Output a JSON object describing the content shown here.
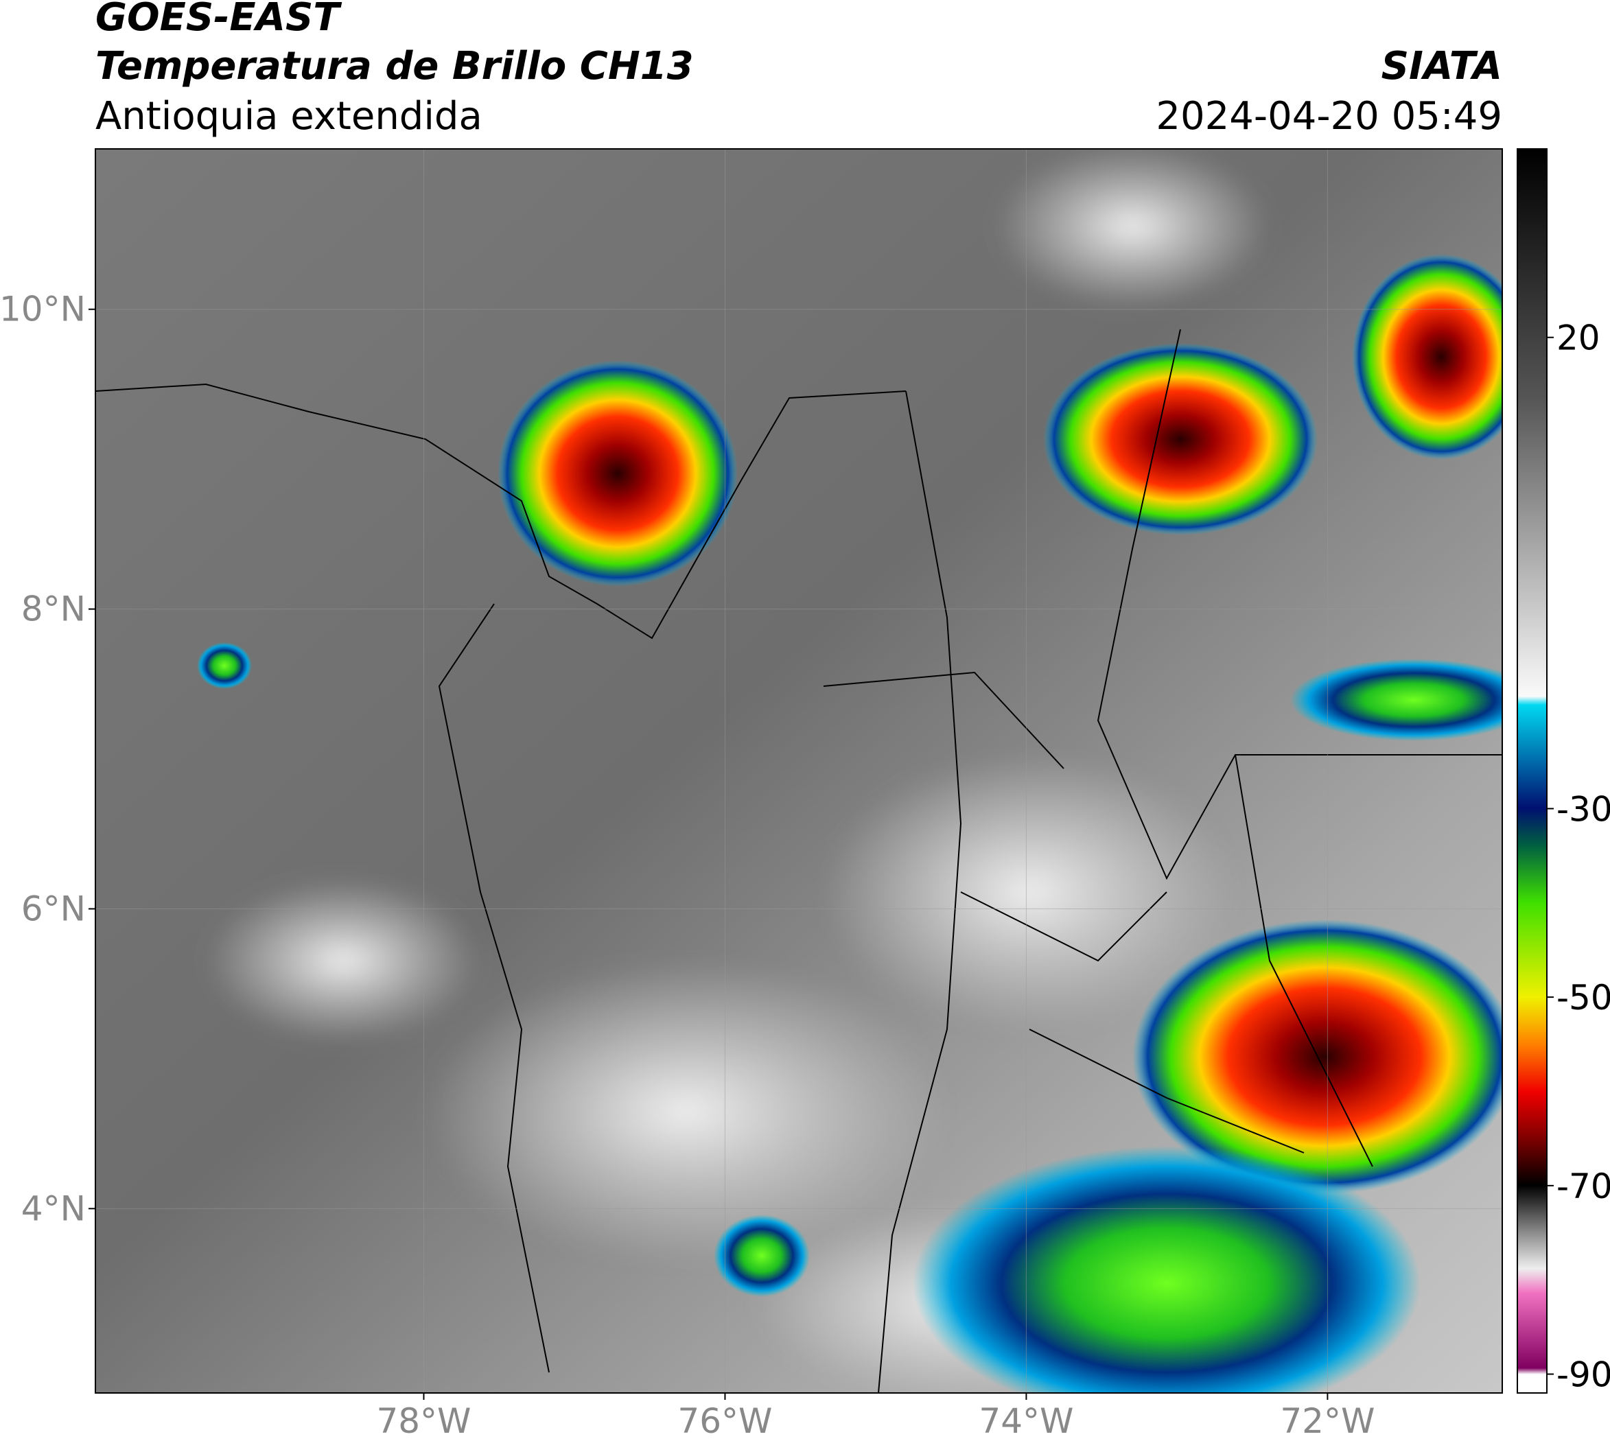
{
  "header": {
    "title": "GOES-EAST",
    "subtitle": "Temperatura de Brillo CH13",
    "region": "Antioquia extendida",
    "source": "SIATA",
    "datetime": "2024-04-20 05:49"
  },
  "map": {
    "xlim": [
      -80.18,
      -70.84
    ],
    "ylim": [
      2.77,
      11.07
    ],
    "xticks": [
      {
        "value": -78,
        "label": "78°W"
      },
      {
        "value": -76,
        "label": "76°W"
      },
      {
        "value": -74,
        "label": "74°W"
      },
      {
        "value": -72,
        "label": "72°W"
      }
    ],
    "yticks": [
      {
        "value": 10,
        "label": "10°N"
      },
      {
        "value": 8,
        "label": "8°N"
      },
      {
        "value": 6,
        "label": "6°N"
      },
      {
        "value": 4,
        "label": "4°N"
      }
    ],
    "grid": true
  },
  "colorbar": {
    "lim": [
      -92,
      40
    ],
    "ticks": [
      20,
      -30,
      -50,
      -70,
      -90
    ]
  }
}
